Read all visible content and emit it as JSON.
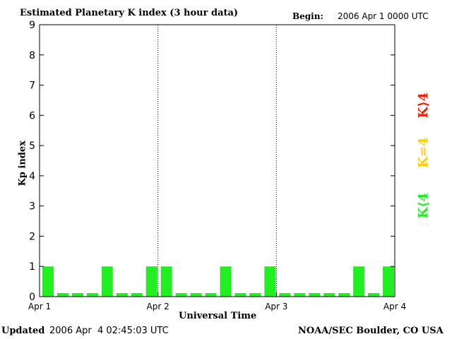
{
  "header": {
    "title": "Estimated Planetary K index (3 hour data)",
    "begin_label": "Begin:",
    "begin_value": "2006 Apr 1 0000 UTC"
  },
  "footer": {
    "updated_label": "Updated",
    "updated_value": "2006 Apr  4 02:45:03 UTC",
    "source": "NOAA/SEC Boulder, CO USA"
  },
  "legend": {
    "high": "K⟩4",
    "equal": "K=4",
    "low": "K⟨4"
  },
  "colors": {
    "bar_low": "#22ee22",
    "legend_high": "#ee2200",
    "legend_equal": "#ffcc00",
    "legend_low": "#22ee22"
  },
  "chart_data": {
    "type": "bar",
    "title": "Estimated Planetary K index (3 hour data)",
    "xlabel": "Universal Time",
    "ylabel": "Kp index",
    "ylim": [
      0,
      9
    ],
    "yticks": [
      "0",
      "1",
      "2",
      "3",
      "4",
      "5",
      "6",
      "7",
      "8",
      "9"
    ],
    "xticks": [
      "Apr 1",
      "Apr 2",
      "Apr 3",
      "Apr 4"
    ],
    "grid": false,
    "day_separators": true,
    "values": [
      1,
      0,
      0,
      0,
      1,
      0,
      0,
      1,
      1,
      0,
      0,
      0,
      1,
      0,
      0,
      1,
      0,
      0,
      0,
      0,
      0,
      1,
      0,
      1
    ]
  }
}
